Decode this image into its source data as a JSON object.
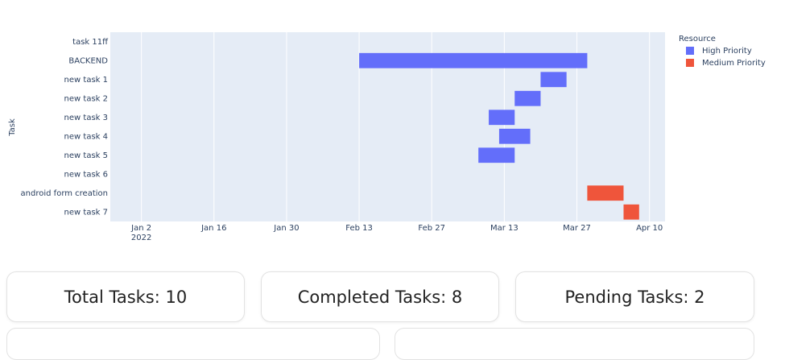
{
  "chart_data": {
    "type": "timeline",
    "y_axis_label": "Task",
    "categories": [
      "task 11ff",
      "BACKEND",
      "new task 1",
      "new task 2",
      "new task 3",
      "new task 4",
      "new task 5",
      "new task 6",
      "android form creation",
      "new task 7"
    ],
    "series": [
      {
        "name": "High Priority",
        "color": "#636efa",
        "start": [
          null,
          "2022-02-13",
          "2022-03-20",
          "2022-03-15",
          "2022-03-10",
          "2022-03-12",
          "2022-03-08",
          null,
          null,
          null
        ],
        "end": [
          null,
          "2022-03-29",
          "2022-03-25",
          "2022-03-20",
          "2022-03-15",
          "2022-03-18",
          "2022-03-15",
          null,
          null,
          null
        ]
      },
      {
        "name": "Medium Priority",
        "color": "#ef553b",
        "start": [
          null,
          null,
          null,
          null,
          null,
          null,
          null,
          null,
          "2022-03-29",
          "2022-04-05"
        ],
        "end": [
          null,
          null,
          null,
          null,
          null,
          null,
          null,
          null,
          "2022-04-05",
          "2022-04-08"
        ]
      }
    ],
    "legend_title": "Resource",
    "legend": "right",
    "xlim": [
      "2021-12-27",
      "2022-04-13"
    ],
    "xticks": [
      {
        "value": "2022-01-02",
        "label": "Jan 2"
      },
      {
        "value": "2022-01-16",
        "label": "Jan 16"
      },
      {
        "value": "2022-01-30",
        "label": "Jan 30"
      },
      {
        "value": "2022-02-13",
        "label": "Feb 13"
      },
      {
        "value": "2022-02-27",
        "label": "Feb 27"
      },
      {
        "value": "2022-03-13",
        "label": "Mar 13"
      },
      {
        "value": "2022-03-27",
        "label": "Mar 27"
      },
      {
        "value": "2022-04-10",
        "label": "Apr 10"
      }
    ],
    "xtick_year": "2022",
    "grid": true
  },
  "cards": [
    "Total Tasks: 10",
    "Completed Tasks: 8",
    "Pending Tasks: 2"
  ]
}
